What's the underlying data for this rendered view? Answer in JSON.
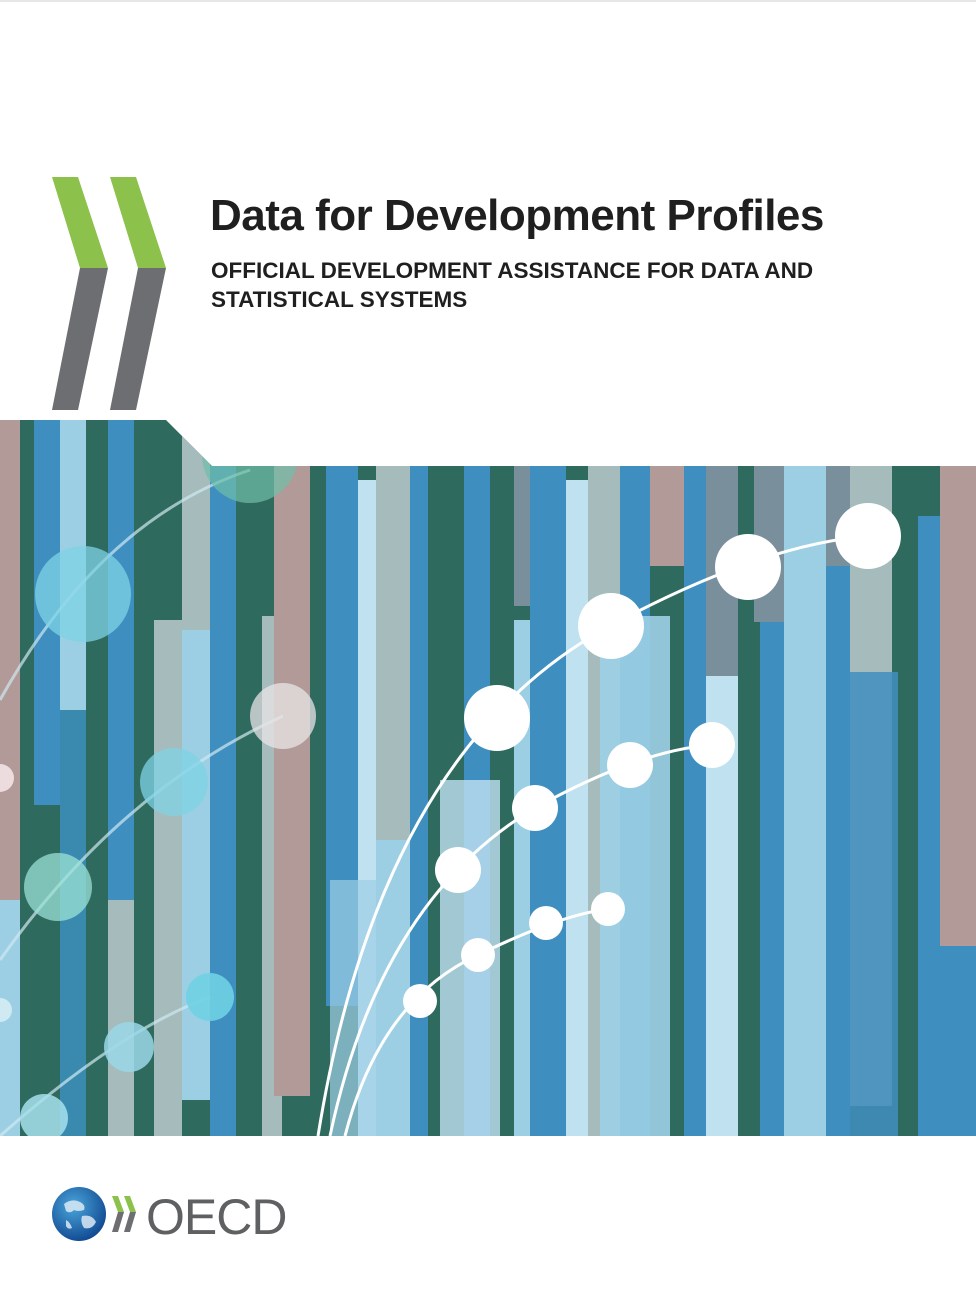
{
  "cover": {
    "title": "Data for Development Profiles",
    "subtitle": "OFFICIAL DEVELOPMENT ASSISTANCE FOR DATA AND STATISTICAL SYSTEMS",
    "publisher": "OECD"
  },
  "colors": {
    "chevron_green": "#8cc14c",
    "chevron_grey": "#6d6e71",
    "dark_teal": "#2f6a5f",
    "mid_blue": "#3f8ec0",
    "light_blue": "#9ccfe4",
    "pale_blue": "#bfe1f0",
    "grey_teal": "#a6bcbc",
    "mauve": "#b29a98",
    "slate": "#7a8f9c",
    "text_dark": "#1f1f1f",
    "oecd_grey": "#5f6062"
  },
  "icons": {
    "chevrons": "oecd-chevrons-icon",
    "globe": "globe-icon"
  }
}
